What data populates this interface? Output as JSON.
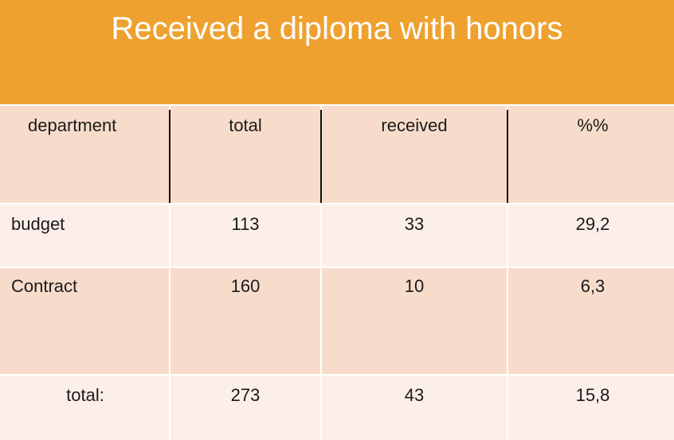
{
  "header": {
    "title": "Received a diploma with honors"
  },
  "table": {
    "columns": [
      "department",
      "total",
      "received",
      "%%"
    ],
    "rows": [
      [
        "budget",
        "113",
        "33",
        "29,2"
      ],
      [
        "Contract",
        "160",
        "10",
        "6,3"
      ],
      [
        "total:",
        "273",
        "43",
        "15,8"
      ]
    ]
  }
}
